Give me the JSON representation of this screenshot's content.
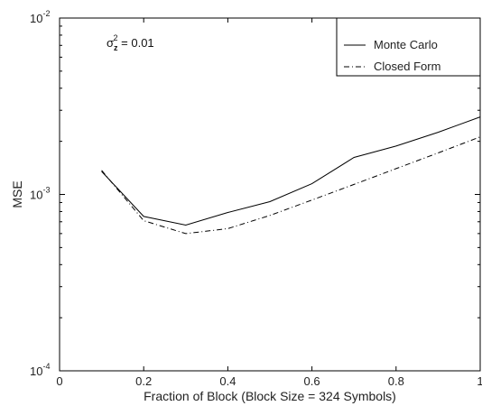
{
  "chart_data": {
    "type": "line",
    "title": "",
    "xlabel": "Fraction of Block (Block Size = 324 Symbols)",
    "ylabel": "MSE",
    "xlim": [
      0,
      1
    ],
    "ylim": [
      0.0001,
      0.01
    ],
    "yscale": "log",
    "grid": false,
    "x_ticks": [
      0,
      0.2,
      0.4,
      0.6,
      0.8,
      1
    ],
    "x_tick_labels": [
      "0",
      "0.2",
      "0.4",
      "0.6",
      "0.8",
      "1"
    ],
    "y_ticks": [
      {
        "value": 0.0001,
        "base": "10",
        "exp": "-4"
      },
      {
        "value": 0.001,
        "base": "10",
        "exp": "-3"
      },
      {
        "value": 0.01,
        "base": "10",
        "exp": "-2"
      }
    ],
    "legend_position": "top-right",
    "annotation": {
      "sigma": "σ",
      "sub": "z",
      "sup": "2",
      "rest": " = 0.01"
    },
    "series": [
      {
        "name": "Monte Carlo",
        "style": "solid",
        "x": [
          0.1,
          0.2,
          0.3,
          0.4,
          0.5,
          0.6,
          0.7,
          0.8,
          0.9,
          1.0
        ],
        "y": [
          0.00135,
          0.00075,
          0.00067,
          0.00079,
          0.00091,
          0.00115,
          0.00162,
          0.00188,
          0.00225,
          0.00275
        ]
      },
      {
        "name": "Closed Form",
        "style": "dashdot",
        "x": [
          0.1,
          0.2,
          0.3,
          0.4,
          0.5,
          0.6,
          0.7,
          0.8,
          0.9,
          1.0
        ],
        "y": [
          0.00137,
          0.00071,
          0.0006,
          0.00064,
          0.00076,
          0.00093,
          0.00114,
          0.0014,
          0.00172,
          0.00212
        ]
      }
    ]
  }
}
